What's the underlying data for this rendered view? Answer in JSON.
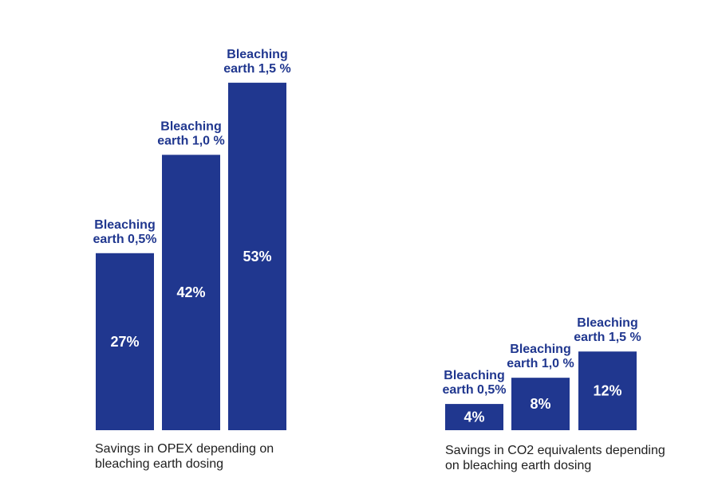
{
  "colors": {
    "bar": "#20378f",
    "label": "#20378f",
    "value_text": "#ffffff",
    "caption_text": "#1e1e1e"
  },
  "chart_data": [
    {
      "type": "bar",
      "categories": [
        "Bleaching earth 0,5%",
        "Bleaching earth 1,0 %",
        "Bleaching earth 1,5 %"
      ],
      "category_lines": [
        [
          "Bleaching",
          "earth 0,5%"
        ],
        [
          "Bleaching",
          "earth 1,0 %"
        ],
        [
          "Bleaching",
          "earth 1,5 %"
        ]
      ],
      "values": [
        27,
        42,
        53
      ],
      "value_labels": [
        "27%",
        "42%",
        "53%"
      ],
      "ylim": [
        0,
        55
      ],
      "grid": false,
      "xlabel": "",
      "ylabel": "",
      "caption": "Savings in OPEX depending on bleaching earth dosing",
      "caption_lines": [
        "Savings in OPEX depending on",
        "bleaching earth dosing"
      ]
    },
    {
      "type": "bar",
      "categories": [
        "Bleaching earth 0,5%",
        "Bleaching earth 1,0 %",
        "Bleaching earth 1,5 %"
      ],
      "category_lines": [
        [
          "Bleaching",
          "earth 0,5%"
        ],
        [
          "Bleaching",
          "earth 1,0 %"
        ],
        [
          "Bleaching",
          "earth 1,5 %"
        ]
      ],
      "values": [
        4,
        8,
        12
      ],
      "value_labels": [
        "4%",
        "8%",
        "12%"
      ],
      "ylim": [
        0,
        55
      ],
      "grid": false,
      "xlabel": "",
      "ylabel": "",
      "caption": "Savings in CO2 equivalents depending on bleaching earth dosing",
      "caption_lines": [
        "Savings in CO2 equivalents depending",
        "on bleaching earth dosing"
      ]
    }
  ]
}
